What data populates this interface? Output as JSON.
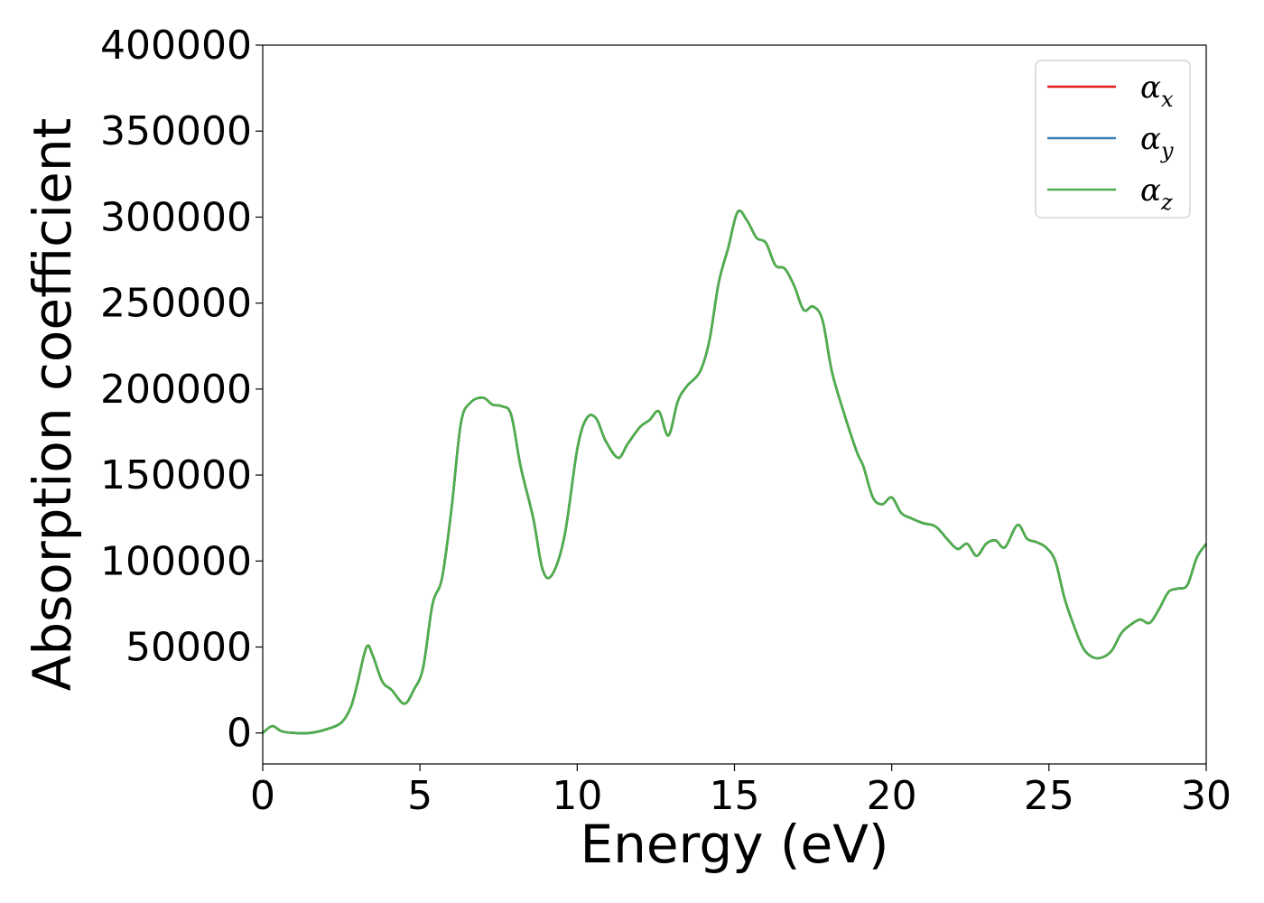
{
  "chart_data": {
    "type": "line",
    "xlabel": "Energy (eV)",
    "ylabel": "Absorption coefficient",
    "xlim": [
      0,
      30
    ],
    "ylim": [
      -18000,
      400000
    ],
    "x_ticks": [
      0,
      5,
      10,
      15,
      20,
      25,
      30
    ],
    "y_ticks": [
      0,
      50000,
      100000,
      150000,
      200000,
      250000,
      300000,
      350000,
      400000
    ],
    "grid": false,
    "legend_position": "top-right",
    "x": [
      0,
      0.3,
      0.6,
      1.0,
      1.5,
      2.0,
      2.5,
      2.8,
      3.0,
      3.3,
      3.5,
      3.8,
      4.1,
      4.5,
      4.8,
      5.1,
      5.4,
      5.7,
      6.0,
      6.3,
      6.6,
      7.0,
      7.3,
      7.6,
      7.9,
      8.2,
      8.6,
      8.9,
      9.2,
      9.6,
      10.0,
      10.3,
      10.6,
      10.9,
      11.3,
      11.6,
      12.0,
      12.3,
      12.6,
      12.9,
      13.2,
      13.5,
      13.9,
      14.2,
      14.5,
      14.8,
      15.1,
      15.4,
      15.7,
      16.0,
      16.3,
      16.6,
      16.9,
      17.2,
      17.5,
      17.8,
      18.1,
      18.5,
      18.9,
      19.1,
      19.4,
      19.7,
      20.0,
      20.3,
      20.6,
      21.0,
      21.4,
      21.8,
      22.1,
      22.4,
      22.7,
      23.0,
      23.3,
      23.6,
      24.0,
      24.3,
      24.6,
      24.9,
      25.2,
      25.5,
      25.8,
      26.1,
      26.4,
      26.7,
      27.0,
      27.3,
      27.6,
      27.9,
      28.2,
      28.5,
      28.8,
      29.1,
      29.4,
      29.7,
      30.0
    ],
    "series": [
      {
        "name": "α_x",
        "label_main": "α",
        "label_sub": "x",
        "color": "#e41a1c",
        "values": [
          0,
          4000,
          1000,
          0,
          0,
          2000,
          6000,
          15000,
          28000,
          50000,
          45000,
          30000,
          25000,
          17000,
          25000,
          38000,
          75000,
          90000,
          130000,
          180000,
          192000,
          195000,
          191000,
          190000,
          185000,
          155000,
          125000,
          95000,
          92000,
          115000,
          165000,
          183000,
          183000,
          170000,
          160000,
          168000,
          178000,
          182000,
          187000,
          173000,
          193000,
          202000,
          210000,
          228000,
          262000,
          282000,
          303000,
          298000,
          288000,
          285000,
          272000,
          270000,
          260000,
          246000,
          248000,
          240000,
          210000,
          185000,
          163000,
          155000,
          137000,
          133000,
          137000,
          128000,
          125000,
          122000,
          120000,
          112000,
          107000,
          110000,
          103000,
          110000,
          112000,
          108000,
          121000,
          113000,
          111000,
          108000,
          100000,
          78000,
          62000,
          49000,
          44000,
          44000,
          48000,
          58000,
          63000,
          66000,
          64000,
          72000,
          82000,
          84000,
          86000,
          102000,
          110000
        ]
      },
      {
        "name": "α_y",
        "label_main": "α",
        "label_sub": "y",
        "color": "#377eb8",
        "values": [
          0,
          4000,
          1000,
          0,
          0,
          2000,
          6000,
          15000,
          28000,
          50000,
          45000,
          30000,
          25000,
          17000,
          25000,
          38000,
          75000,
          90000,
          130000,
          180000,
          192000,
          195000,
          191000,
          190000,
          185000,
          155000,
          125000,
          95000,
          92000,
          115000,
          165000,
          183000,
          183000,
          170000,
          160000,
          168000,
          178000,
          182000,
          187000,
          173000,
          193000,
          202000,
          210000,
          228000,
          262000,
          282000,
          303000,
          298000,
          288000,
          285000,
          272000,
          270000,
          260000,
          246000,
          248000,
          240000,
          210000,
          185000,
          163000,
          155000,
          137000,
          133000,
          137000,
          128000,
          125000,
          122000,
          120000,
          112000,
          107000,
          110000,
          103000,
          110000,
          112000,
          108000,
          121000,
          113000,
          111000,
          108000,
          100000,
          78000,
          62000,
          49000,
          44000,
          44000,
          48000,
          58000,
          63000,
          66000,
          64000,
          72000,
          82000,
          84000,
          86000,
          102000,
          110000
        ]
      },
      {
        "name": "α_z",
        "label_main": "α",
        "label_sub": "z",
        "color": "#4daf4a",
        "values": [
          0,
          4000,
          1000,
          0,
          0,
          2000,
          6000,
          15000,
          28000,
          50000,
          45000,
          30000,
          25000,
          17000,
          25000,
          38000,
          75000,
          90000,
          130000,
          180000,
          192000,
          195000,
          191000,
          190000,
          185000,
          155000,
          125000,
          95000,
          92000,
          115000,
          165000,
          183000,
          183000,
          170000,
          160000,
          168000,
          178000,
          182000,
          187000,
          173000,
          193000,
          202000,
          210000,
          228000,
          262000,
          282000,
          303000,
          298000,
          288000,
          285000,
          272000,
          270000,
          260000,
          246000,
          248000,
          240000,
          210000,
          185000,
          163000,
          155000,
          137000,
          133000,
          137000,
          128000,
          125000,
          122000,
          120000,
          112000,
          107000,
          110000,
          103000,
          110000,
          112000,
          108000,
          121000,
          113000,
          111000,
          108000,
          100000,
          78000,
          62000,
          49000,
          44000,
          44000,
          48000,
          58000,
          63000,
          66000,
          64000,
          72000,
          82000,
          84000,
          86000,
          102000,
          110000
        ]
      }
    ]
  }
}
